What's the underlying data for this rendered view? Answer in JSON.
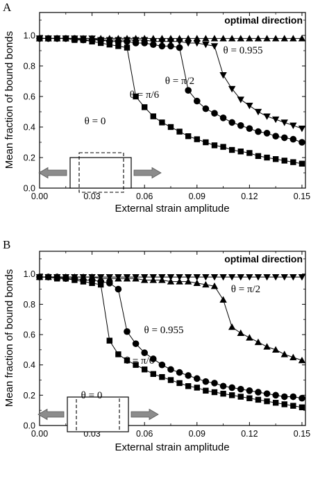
{
  "chart_data": [
    {
      "panel_label": "A",
      "type": "line",
      "title": "",
      "xlabel": "External strain amplitude",
      "ylabel": "Mean fraction of bound bonds",
      "xlim": [
        0,
        0.152
      ],
      "ylim": [
        0,
        1.15
      ],
      "x_ticks": [
        "0.00",
        "0.03",
        "0.06",
        "0.09",
        "0.12",
        "0.15"
      ],
      "y_ticks": [
        "0.0",
        "0.2",
        "0.4",
        "0.6",
        "0.8",
        "1.0"
      ],
      "annotation": "optimal direction",
      "series": [
        {
          "name": "θ = 0",
          "marker": "square",
          "x": [
            0.0,
            0.005,
            0.01,
            0.015,
            0.02,
            0.025,
            0.03,
            0.035,
            0.04,
            0.045,
            0.05,
            0.055,
            0.06,
            0.065,
            0.07,
            0.075,
            0.08,
            0.085,
            0.09,
            0.095,
            0.1,
            0.105,
            0.11,
            0.115,
            0.12,
            0.125,
            0.13,
            0.135,
            0.14,
            0.145,
            0.15
          ],
          "y": [
            0.98,
            0.98,
            0.98,
            0.98,
            0.97,
            0.97,
            0.96,
            0.95,
            0.94,
            0.93,
            0.92,
            0.6,
            0.53,
            0.47,
            0.43,
            0.4,
            0.37,
            0.34,
            0.32,
            0.3,
            0.28,
            0.27,
            0.25,
            0.24,
            0.23,
            0.21,
            0.2,
            0.19,
            0.18,
            0.17,
            0.16
          ]
        },
        {
          "name": "θ = π/6",
          "marker": "circle",
          "x": [
            0.0,
            0.005,
            0.01,
            0.015,
            0.02,
            0.025,
            0.03,
            0.035,
            0.04,
            0.045,
            0.05,
            0.055,
            0.06,
            0.065,
            0.07,
            0.075,
            0.08,
            0.085,
            0.09,
            0.095,
            0.1,
            0.105,
            0.11,
            0.115,
            0.12,
            0.125,
            0.13,
            0.135,
            0.14,
            0.145,
            0.15
          ],
          "y": [
            0.98,
            0.98,
            0.98,
            0.98,
            0.98,
            0.97,
            0.97,
            0.97,
            0.96,
            0.96,
            0.96,
            0.95,
            0.95,
            0.94,
            0.93,
            0.93,
            0.92,
            0.64,
            0.57,
            0.52,
            0.49,
            0.46,
            0.43,
            0.41,
            0.39,
            0.37,
            0.36,
            0.34,
            0.33,
            0.32,
            0.3
          ]
        },
        {
          "name": "θ = π/2",
          "marker": "triangle-down",
          "x": [
            0.0,
            0.005,
            0.01,
            0.015,
            0.02,
            0.025,
            0.03,
            0.035,
            0.04,
            0.045,
            0.05,
            0.055,
            0.06,
            0.065,
            0.07,
            0.075,
            0.08,
            0.085,
            0.09,
            0.095,
            0.1,
            0.105,
            0.11,
            0.115,
            0.12,
            0.125,
            0.13,
            0.135,
            0.14,
            0.145,
            0.15
          ],
          "y": [
            0.98,
            0.98,
            0.98,
            0.98,
            0.98,
            0.98,
            0.98,
            0.97,
            0.97,
            0.97,
            0.97,
            0.97,
            0.97,
            0.96,
            0.96,
            0.96,
            0.96,
            0.95,
            0.95,
            0.94,
            0.93,
            0.74,
            0.65,
            0.58,
            0.54,
            0.5,
            0.47,
            0.45,
            0.43,
            0.41,
            0.39
          ]
        },
        {
          "name": "θ = 0.955",
          "marker": "triangle-up",
          "x": [
            0.0,
            0.005,
            0.01,
            0.015,
            0.02,
            0.025,
            0.03,
            0.035,
            0.04,
            0.045,
            0.05,
            0.055,
            0.06,
            0.065,
            0.07,
            0.075,
            0.08,
            0.085,
            0.09,
            0.095,
            0.1,
            0.105,
            0.11,
            0.115,
            0.12,
            0.125,
            0.13,
            0.135,
            0.14,
            0.145,
            0.15
          ],
          "y": [
            0.98,
            0.98,
            0.98,
            0.98,
            0.98,
            0.98,
            0.98,
            0.98,
            0.98,
            0.98,
            0.98,
            0.98,
            0.98,
            0.98,
            0.98,
            0.98,
            0.98,
            0.98,
            0.98,
            0.98,
            0.98,
            0.98,
            0.98,
            0.98,
            0.98,
            0.98,
            0.98,
            0.98,
            0.98,
            0.98,
            0.98
          ]
        }
      ]
    },
    {
      "panel_label": "B",
      "type": "line",
      "title": "",
      "xlabel": "External strain amplitude",
      "ylabel": "Mean fraction of bound bonds",
      "xlim": [
        0,
        0.152
      ],
      "ylim": [
        0,
        1.15
      ],
      "x_ticks": [
        "0.00",
        "0.03",
        "0.06",
        "0.09",
        "0.12",
        "0.15"
      ],
      "y_ticks": [
        "0.0",
        "0.2",
        "0.4",
        "0.6",
        "0.8",
        "1.0"
      ],
      "annotation": "optimal direction",
      "series": [
        {
          "name": "θ = 0",
          "marker": "square",
          "x": [
            0.0,
            0.005,
            0.01,
            0.015,
            0.02,
            0.025,
            0.03,
            0.035,
            0.04,
            0.045,
            0.05,
            0.055,
            0.06,
            0.065,
            0.07,
            0.075,
            0.08,
            0.085,
            0.09,
            0.095,
            0.1,
            0.105,
            0.11,
            0.115,
            0.12,
            0.125,
            0.13,
            0.135,
            0.14,
            0.145,
            0.15
          ],
          "y": [
            0.98,
            0.98,
            0.97,
            0.97,
            0.96,
            0.95,
            0.94,
            0.93,
            0.56,
            0.47,
            0.43,
            0.4,
            0.37,
            0.34,
            0.32,
            0.3,
            0.28,
            0.26,
            0.25,
            0.23,
            0.22,
            0.21,
            0.2,
            0.19,
            0.18,
            0.17,
            0.16,
            0.15,
            0.14,
            0.13,
            0.12
          ]
        },
        {
          "name": "θ = π/6",
          "marker": "circle",
          "x": [
            0.0,
            0.005,
            0.01,
            0.015,
            0.02,
            0.025,
            0.03,
            0.035,
            0.04,
            0.045,
            0.05,
            0.055,
            0.06,
            0.065,
            0.07,
            0.075,
            0.08,
            0.085,
            0.09,
            0.095,
            0.1,
            0.105,
            0.11,
            0.115,
            0.12,
            0.125,
            0.13,
            0.135,
            0.14,
            0.145,
            0.15
          ],
          "y": [
            0.98,
            0.98,
            0.98,
            0.97,
            0.97,
            0.96,
            0.96,
            0.95,
            0.94,
            0.9,
            0.62,
            0.54,
            0.48,
            0.44,
            0.4,
            0.37,
            0.35,
            0.33,
            0.31,
            0.29,
            0.28,
            0.26,
            0.25,
            0.24,
            0.23,
            0.22,
            0.21,
            0.2,
            0.19,
            0.19,
            0.18
          ]
        },
        {
          "name": "θ = 0.955",
          "marker": "triangle-up",
          "x": [
            0.0,
            0.005,
            0.01,
            0.015,
            0.02,
            0.025,
            0.03,
            0.035,
            0.04,
            0.045,
            0.05,
            0.055,
            0.06,
            0.065,
            0.07,
            0.075,
            0.08,
            0.085,
            0.09,
            0.095,
            0.1,
            0.105,
            0.11,
            0.115,
            0.12,
            0.125,
            0.13,
            0.135,
            0.14,
            0.145,
            0.15
          ],
          "y": [
            0.98,
            0.98,
            0.98,
            0.98,
            0.98,
            0.98,
            0.98,
            0.97,
            0.97,
            0.97,
            0.97,
            0.97,
            0.96,
            0.96,
            0.96,
            0.95,
            0.95,
            0.95,
            0.94,
            0.93,
            0.92,
            0.83,
            0.65,
            0.61,
            0.58,
            0.55,
            0.52,
            0.5,
            0.47,
            0.45,
            0.43
          ]
        },
        {
          "name": "θ = π/2",
          "marker": "triangle-down",
          "x": [
            0.0,
            0.005,
            0.01,
            0.015,
            0.02,
            0.025,
            0.03,
            0.035,
            0.04,
            0.045,
            0.05,
            0.055,
            0.06,
            0.065,
            0.07,
            0.075,
            0.08,
            0.085,
            0.09,
            0.095,
            0.1,
            0.105,
            0.11,
            0.115,
            0.12,
            0.125,
            0.13,
            0.135,
            0.14,
            0.145,
            0.15
          ],
          "y": [
            0.98,
            0.98,
            0.98,
            0.98,
            0.98,
            0.98,
            0.98,
            0.98,
            0.98,
            0.98,
            0.98,
            0.98,
            0.98,
            0.98,
            0.98,
            0.98,
            0.98,
            0.98,
            0.98,
            0.98,
            0.98,
            0.98,
            0.98,
            0.98,
            0.98,
            0.98,
            0.98,
            0.98,
            0.98,
            0.98,
            0.98
          ]
        }
      ]
    }
  ]
}
